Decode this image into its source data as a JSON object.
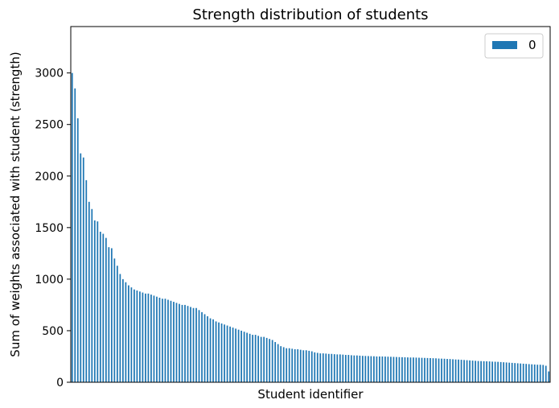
{
  "chart_data": {
    "type": "bar",
    "title": "Strength distribution of students",
    "xlabel": "Student identifier",
    "ylabel": "Sum of weights associated with student (strength)",
    "legend": {
      "position": "top-right",
      "entries": [
        {
          "label": "0",
          "color": "#1f77b4"
        }
      ]
    },
    "ylim": [
      0,
      3450
    ],
    "yticks": [
      0,
      500,
      1000,
      1500,
      2000,
      2500,
      3000
    ],
    "grid": false,
    "x_tick_labels_visible": false,
    "series": [
      {
        "name": "0",
        "color": "#1f77b4",
        "values": [
          3000,
          2850,
          2560,
          2220,
          2180,
          1960,
          1750,
          1680,
          1570,
          1560,
          1460,
          1440,
          1400,
          1310,
          1300,
          1200,
          1130,
          1050,
          1000,
          970,
          940,
          920,
          900,
          890,
          880,
          870,
          860,
          860,
          850,
          840,
          830,
          820,
          810,
          810,
          800,
          790,
          780,
          770,
          760,
          750,
          750,
          740,
          730,
          720,
          720,
          700,
          680,
          660,
          640,
          620,
          610,
          590,
          580,
          570,
          560,
          550,
          540,
          530,
          520,
          510,
          500,
          490,
          480,
          470,
          460,
          460,
          450,
          440,
          440,
          430,
          420,
          410,
          390,
          370,
          350,
          340,
          330,
          330,
          325,
          320,
          320,
          315,
          310,
          310,
          305,
          300,
          290,
          285,
          280,
          280,
          278,
          275,
          275,
          272,
          270,
          270,
          268,
          265,
          265,
          262,
          260,
          260,
          258,
          256,
          255,
          254,
          253,
          252,
          250,
          250,
          250,
          249,
          248,
          247,
          246,
          245,
          244,
          243,
          242,
          241,
          240,
          240,
          239,
          238,
          237,
          236,
          235,
          234,
          233,
          232,
          230,
          229,
          228,
          226,
          225,
          223,
          221,
          220,
          218,
          216,
          214,
          212,
          210,
          208,
          206,
          205,
          204,
          203,
          202,
          200,
          199,
          198,
          196,
          194,
          192,
          190,
          188,
          186,
          184,
          182,
          180,
          178,
          176,
          174,
          172,
          170,
          170,
          168,
          160,
          105
        ]
      }
    ]
  }
}
